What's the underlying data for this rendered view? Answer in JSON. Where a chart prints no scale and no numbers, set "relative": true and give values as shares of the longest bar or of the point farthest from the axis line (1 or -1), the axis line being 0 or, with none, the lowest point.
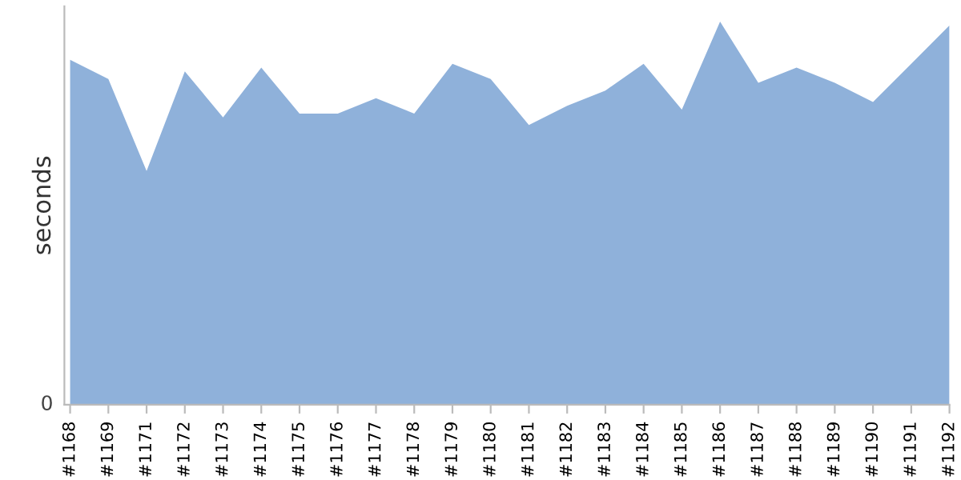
{
  "chart_data": {
    "type": "area",
    "ylabel": "seconds",
    "relative": true,
    "annotations": [
      "0"
    ],
    "categories": [
      "#1168",
      "#1169",
      "#1171",
      "#1172",
      "#1173",
      "#1174",
      "#1175",
      "#1176",
      "#1177",
      "#1178",
      "#1179",
      "#1180",
      "#1181",
      "#1182",
      "#1183",
      "#1184",
      "#1185",
      "#1186",
      "#1187",
      "#1188",
      "#1189",
      "#1190",
      "#1191",
      "#1192"
    ],
    "series": [
      {
        "color": "#8fb1da",
        "values": [
          0.9,
          0.85,
          0.61,
          0.87,
          0.75,
          0.88,
          0.76,
          0.76,
          0.8,
          0.76,
          0.89,
          0.85,
          0.73,
          0.78,
          0.82,
          0.89,
          0.77,
          1.0,
          0.84,
          0.88,
          0.84,
          0.79,
          0.89,
          0.99
        ]
      }
    ],
    "grid": false,
    "legend": false
  }
}
